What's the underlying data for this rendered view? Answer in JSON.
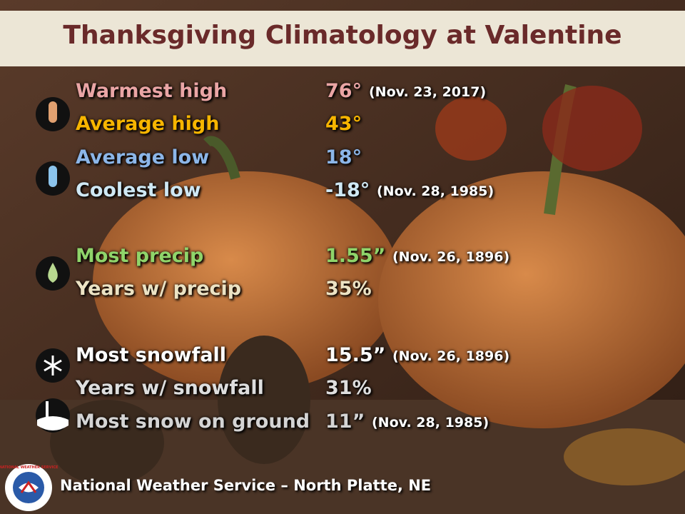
{
  "header": {
    "title": "Thanksgiving Climatology at Valentine"
  },
  "sections": [
    {
      "rows": [
        {
          "label": "Warmest high",
          "value": "76°",
          "date": "(Nov. 23, 2017)",
          "color": "#eaa5a5"
        },
        {
          "label": "Average high",
          "value": "43°",
          "color": "#f7b500"
        },
        {
          "label": "Average low",
          "value": "18°",
          "color": "#8cb6e8"
        },
        {
          "label": "Coolest low",
          "value": "-18°",
          "date": "(Nov. 28, 1985)",
          "color": "#cfe8f4"
        }
      ]
    },
    {
      "rows": [
        {
          "label": "Most precip",
          "value": "1.55”",
          "date": "(Nov. 26, 1896)",
          "color": "#8fd46a"
        },
        {
          "label": "Years w/ precip",
          "value": "35%",
          "color": "#ece3c4"
        }
      ]
    },
    {
      "rows": [
        {
          "label": "Most snowfall",
          "value": "15.5”",
          "date": "(Nov. 26, 1896)",
          "color": "#ffffff"
        },
        {
          "label": "Years w/ snowfall",
          "value": "31%",
          "color": "#dedede"
        },
        {
          "label": "Most snow on ground",
          "value": "11”",
          "date": "(Nov. 28, 1985)",
          "color": "#d4d4d4"
        }
      ]
    }
  ],
  "footer": {
    "text": "National Weather Service – North Platte, NE",
    "logo_text": "NATIONAL WEATHER SERVICE"
  }
}
